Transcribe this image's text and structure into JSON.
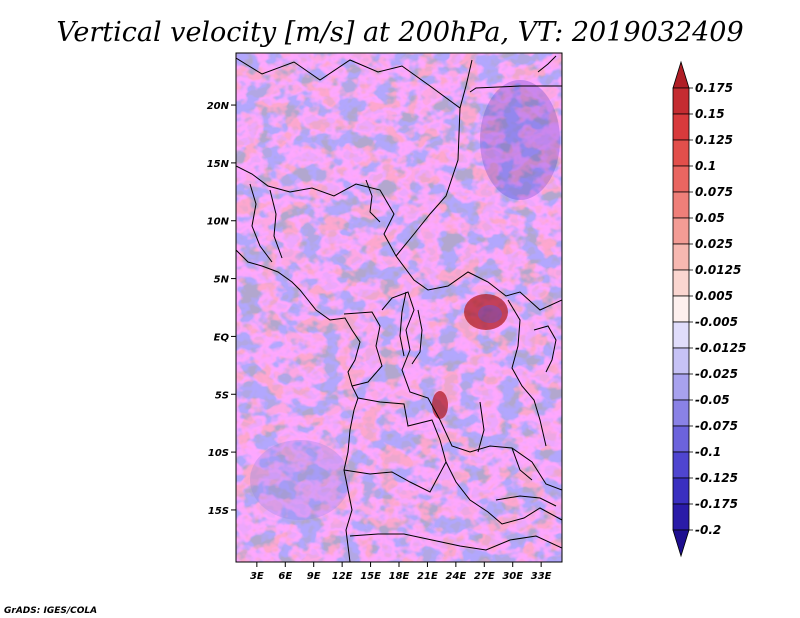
{
  "chart_data": {
    "type": "heatmap",
    "title": "Vertical velocity [m/s] at 200hPa, VT: 2019032409",
    "variable": "Vertical velocity",
    "units": "m/s",
    "level": "200hPa",
    "valid_time": "2019032409",
    "x_ticks": [
      "3E",
      "6E",
      "9E",
      "12E",
      "15E",
      "18E",
      "21E",
      "24E",
      "27E",
      "30E",
      "33E"
    ],
    "x_tick_values": [
      3,
      6,
      9,
      12,
      15,
      18,
      21,
      24,
      27,
      30,
      33
    ],
    "y_ticks": [
      "20N",
      "15N",
      "10N",
      "5N",
      "EQ",
      "5S",
      "10S",
      "15S"
    ],
    "y_tick_values": [
      20,
      15,
      10,
      5,
      0,
      -5,
      -10,
      -15
    ],
    "lon_range": [
      0.8,
      35.2
    ],
    "lat_range": [
      -19.5,
      24.5
    ],
    "colorbar_levels": [
      "0.175",
      "0.15",
      "0.125",
      "0.1",
      "0.075",
      "0.05",
      "0.025",
      "0.0125",
      "0.005",
      "-0.005",
      "-0.0125",
      "-0.025",
      "-0.05",
      "-0.075",
      "-0.1",
      "-0.125",
      "-0.175",
      "-0.2"
    ],
    "colorbar_colors": [
      "#b01e25",
      "#c42c31",
      "#d83a3c",
      "#e24f4b",
      "#e96661",
      "#ef7f79",
      "#f39c95",
      "#f7b8b1",
      "#fad6d0",
      "#fdf0ee",
      "#e0ddfb",
      "#c6c2f5",
      "#a8a2ee",
      "#8a82e6",
      "#6c63dc",
      "#4f45d0",
      "#3a2fc0",
      "#2a1ba8",
      "#1e0f90"
    ]
  },
  "credit": "GrADS: IGES/COLA"
}
